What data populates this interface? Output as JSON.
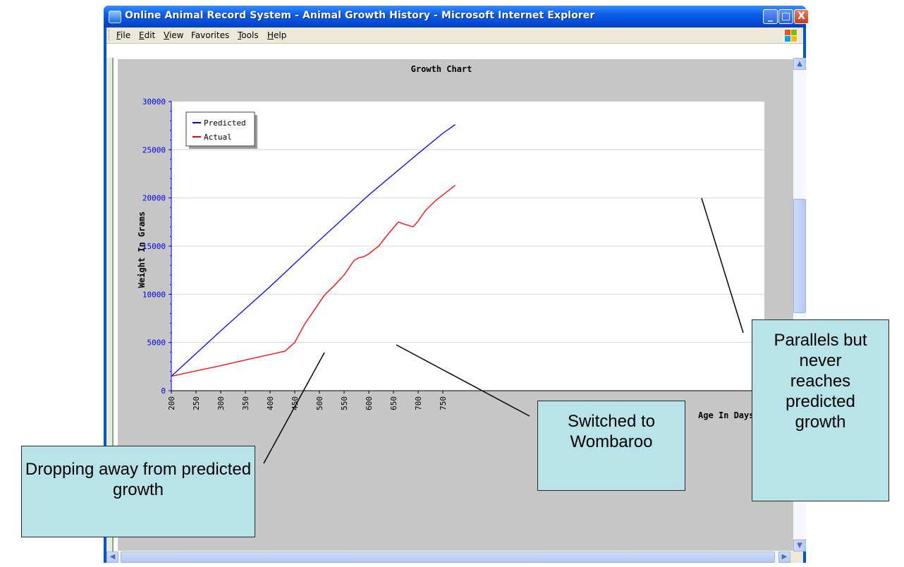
{
  "window": {
    "title": "Online Animal Record System - Animal Growth History - Microsoft Internet Explorer",
    "controls": {
      "minimize": "_",
      "maximize": "□",
      "close": "X"
    }
  },
  "menu": [
    "File",
    "Edit",
    "View",
    "Favorites",
    "Tools",
    "Help"
  ],
  "scroll": {
    "up": "▲",
    "down": "▼",
    "left": "◀",
    "right": "▶"
  },
  "colors": {
    "predicted": "#0000ff",
    "actual": "#ff0000",
    "callout_bg": "#b8e3e8",
    "chart_bg": "#c6c6c6"
  },
  "chart_data": {
    "type": "line",
    "title": "Growth Chart",
    "xlabel": "Age In Days",
    "ylabel": "Weight In Grams",
    "xlim": [
      200,
      800
    ],
    "ylim": [
      0,
      30000
    ],
    "x_ticks": [
      200,
      250,
      300,
      350,
      400,
      450,
      500,
      550,
      600,
      650,
      700,
      750
    ],
    "y_ticks": [
      0,
      5000,
      10000,
      15000,
      20000,
      25000,
      30000
    ],
    "legend_position": "top-left",
    "grid": true,
    "series": [
      {
        "name": "Predicted",
        "color": "#0000ff",
        "x": [
          200,
          300,
          400,
          500,
          600,
          700,
          750,
          775
        ],
        "y": [
          1500,
          6200,
          10800,
          15600,
          20300,
          24600,
          26700,
          27600
        ]
      },
      {
        "name": "Actual",
        "color": "#ff0000",
        "x": [
          200,
          300,
          360,
          430,
          450,
          470,
          490,
          510,
          530,
          550,
          570,
          580,
          590,
          600,
          620,
          640,
          660,
          670,
          690,
          700,
          715,
          735,
          775
        ],
        "y": [
          1500,
          2600,
          3300,
          4100,
          5000,
          6900,
          8400,
          9900,
          10900,
          12000,
          13500,
          13800,
          13900,
          14200,
          15000,
          16300,
          17500,
          17300,
          17000,
          17600,
          18700,
          19700,
          21300
        ]
      }
    ]
  },
  "annotations": [
    {
      "text": "Dropping away from predicted growth"
    },
    {
      "text": "Switched to Wombaroo"
    },
    {
      "text": "Parallels but never reaches predicted growth"
    }
  ]
}
